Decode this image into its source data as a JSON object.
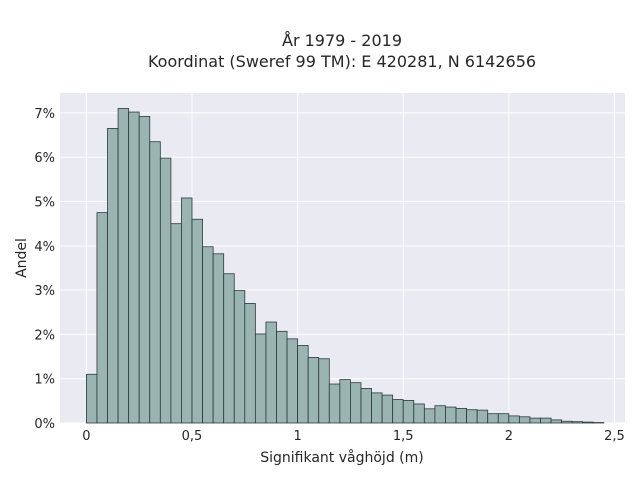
{
  "chart_data": {
    "type": "bar",
    "title_line1": "År 1979 - 2019",
    "title_line2": "Koordinat (Sweref 99 TM): E 420281, N 6142656",
    "xlabel": "Signifikant våghöjd (m)",
    "ylabel": "Andel",
    "xlim": [
      -0.125,
      2.55
    ],
    "ylim": [
      0,
      0.0745
    ],
    "x_ticks": [
      0,
      0.5,
      1,
      1.5,
      2,
      2.5
    ],
    "x_tick_labels": [
      "0",
      "0,5",
      "1",
      "1,5",
      "2",
      "2,5"
    ],
    "y_ticks": [
      0,
      0.01,
      0.02,
      0.03,
      0.04,
      0.05,
      0.06,
      0.07
    ],
    "y_tick_labels": [
      "0%",
      "1%",
      "2%",
      "3%",
      "4%",
      "5%",
      "6%",
      "7%"
    ],
    "bin_start": 0,
    "bin_width": 0.05,
    "values": [
      0.011,
      0.0475,
      0.0665,
      0.071,
      0.0702,
      0.0692,
      0.0635,
      0.0598,
      0.045,
      0.0508,
      0.046,
      0.0398,
      0.0382,
      0.0337,
      0.0299,
      0.027,
      0.0201,
      0.0228,
      0.0207,
      0.019,
      0.0175,
      0.0148,
      0.0145,
      0.0088,
      0.0098,
      0.0091,
      0.0078,
      0.0068,
      0.0063,
      0.0053,
      0.0051,
      0.0043,
      0.0032,
      0.0039,
      0.0036,
      0.0033,
      0.003,
      0.0029,
      0.0021,
      0.0021,
      0.0016,
      0.0014,
      0.0011,
      0.0011,
      0.0007,
      0.0004,
      0.0003,
      0.0002,
      0.0001
    ],
    "grid": true,
    "colors": {
      "bar_fill": "#9ab4b2",
      "bar_edge": "#2a3a39",
      "plot_bg": "#eaeaf2",
      "grid": "#ffffff"
    }
  }
}
